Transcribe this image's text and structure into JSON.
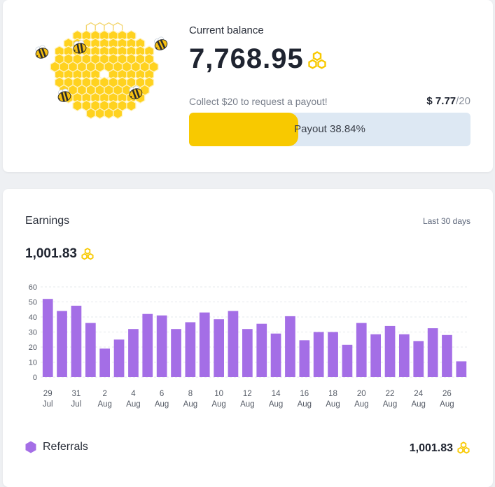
{
  "balance": {
    "label": "Current balance",
    "value": "7,768.95",
    "coin_icon": "honeycomb-coin-icon",
    "collect_text": "Collect $20 to request a payout!",
    "progress_amount": "$ 7.77",
    "progress_total": "/20",
    "payout_text": "Payout 38.84%",
    "payout_fraction": 0.3884
  },
  "earnings": {
    "title": "Earnings",
    "range": "Last 30 days",
    "total": "1,001.83",
    "legend_label": "Referrals",
    "legend_value": "1,001.83"
  },
  "colors": {
    "accent": "#f8c900",
    "bar": "#a46ee6",
    "progress_track": "#dde8f3"
  },
  "chart_data": {
    "type": "bar",
    "categories": [
      "29 Jul",
      "30 Jul",
      "31 Jul",
      "1 Aug",
      "2 Aug",
      "3 Aug",
      "4 Aug",
      "5 Aug",
      "6 Aug",
      "7 Aug",
      "8 Aug",
      "9 Aug",
      "10 Aug",
      "11 Aug",
      "12 Aug",
      "13 Aug",
      "14 Aug",
      "15 Aug",
      "16 Aug",
      "17 Aug",
      "18 Aug",
      "19 Aug",
      "20 Aug",
      "21 Aug",
      "22 Aug",
      "23 Aug",
      "24 Aug",
      "25 Aug",
      "26 Aug",
      "27 Aug"
    ],
    "tick_labels": [
      {
        "day": "29",
        "month": "Jul"
      },
      {
        "day": "31",
        "month": "Jul"
      },
      {
        "day": "2",
        "month": "Aug"
      },
      {
        "day": "4",
        "month": "Aug"
      },
      {
        "day": "6",
        "month": "Aug"
      },
      {
        "day": "8",
        "month": "Aug"
      },
      {
        "day": "10",
        "month": "Aug"
      },
      {
        "day": "12",
        "month": "Aug"
      },
      {
        "day": "14",
        "month": "Aug"
      },
      {
        "day": "16",
        "month": "Aug"
      },
      {
        "day": "18",
        "month": "Aug"
      },
      {
        "day": "20",
        "month": "Aug"
      },
      {
        "day": "22",
        "month": "Aug"
      },
      {
        "day": "24",
        "month": "Aug"
      },
      {
        "day": "26",
        "month": "Aug"
      }
    ],
    "series": [
      {
        "name": "Referrals",
        "values": [
          52,
          44,
          47.5,
          36,
          19,
          25,
          32,
          42,
          41,
          32,
          36.5,
          43,
          38.5,
          44,
          32,
          35.5,
          29,
          40.5,
          24.5,
          30,
          30,
          21.5,
          36,
          28.5,
          34,
          28.5,
          24,
          32.5,
          28,
          10.5
        ]
      }
    ],
    "yticks": [
      0,
      10,
      20,
      30,
      40,
      50,
      60
    ],
    "ylim": [
      0,
      60
    ],
    "grid": true,
    "legend_placement": "bottom-left"
  }
}
